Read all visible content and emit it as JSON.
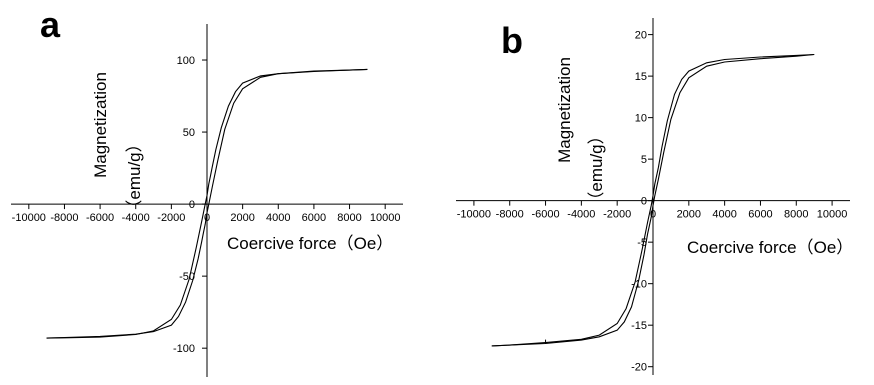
{
  "chart_data": [
    {
      "panel": "a",
      "type": "line",
      "xlabel": "Coercive force（Oe）",
      "ylabel": "Magnetization",
      "yunit": "（emu/g）",
      "xlim": [
        -11000,
        11000
      ],
      "ylim": [
        -120,
        125
      ],
      "xticks": [
        -10000,
        -8000,
        -6000,
        -4000,
        -2000,
        0,
        2000,
        4000,
        6000,
        8000,
        10000
      ],
      "yticks": [
        -100,
        -50,
        0,
        50,
        100
      ],
      "xtick_labels": [
        "-10000",
        "-8000",
        "-6000",
        "-4000",
        "-2000",
        "0",
        "2000",
        "4000",
        "6000",
        "8000",
        "10000"
      ],
      "ytick_labels": [
        "-100",
        "-50",
        "0",
        "50",
        "100"
      ],
      "grid": false,
      "series": [
        {
          "x": [
            -9000,
            -8000,
            -6000,
            -4000,
            -3000,
            -2000,
            -1500,
            -1000,
            -600,
            -300,
            -100,
            0,
            100,
            200,
            300,
            500,
            800,
            1200,
            1600,
            2000,
            3000,
            4000,
            6000,
            8000,
            9000
          ],
          "y": [
            -93,
            -92.8,
            -92.3,
            -90.5,
            -88,
            -80,
            -70,
            -52,
            -30,
            -12,
            0,
            6,
            14,
            20,
            26,
            38,
            53,
            68,
            78,
            84,
            89,
            90.5,
            92,
            93,
            93.5
          ]
        },
        {
          "x": [
            -9000,
            -8000,
            -6000,
            -4000,
            -3000,
            -2000,
            -1600,
            -1200,
            -800,
            -500,
            -300,
            -200,
            -100,
            0,
            100,
            300,
            600,
            1000,
            1500,
            2000,
            3000,
            4000,
            6000,
            8000,
            9000
          ],
          "y": [
            -93,
            -92.6,
            -91.8,
            -90.3,
            -88.5,
            -84,
            -78,
            -68,
            -53,
            -38,
            -26,
            -20,
            -14,
            -6,
            0,
            12,
            30,
            52,
            70,
            80,
            88,
            90.5,
            92.3,
            93,
            93.5
          ]
        }
      ]
    },
    {
      "panel": "b",
      "type": "line",
      "xlabel": "Coercive force（Oe）",
      "ylabel": "Magnetization",
      "yunit": "（emu/g）",
      "xlim": [
        -11000,
        11000
      ],
      "ylim": [
        -21,
        22
      ],
      "xticks": [
        -10000,
        -8000,
        -6000,
        -4000,
        -2000,
        0,
        2000,
        4000,
        6000,
        8000,
        10000
      ],
      "yticks": [
        -20,
        -15,
        -10,
        -5,
        0,
        5,
        10,
        15,
        20
      ],
      "xtick_labels": [
        "-10000",
        "-8000",
        "-6000",
        "-4000",
        "-2000",
        "0",
        "2000",
        "4000",
        "6000",
        "8000",
        "10000"
      ],
      "ytick_labels": [
        "-20",
        "-15",
        "-10",
        "-5",
        "0",
        "5",
        "10",
        "15",
        "20"
      ],
      "grid": false,
      "series": [
        {
          "x": [
            -9000,
            -8000,
            -6000,
            -4000,
            -3000,
            -2000,
            -1500,
            -1000,
            -600,
            -300,
            -100,
            0,
            100,
            200,
            300,
            500,
            800,
            1200,
            1600,
            2000,
            3000,
            4000,
            6000,
            8000,
            9000
          ],
          "y": [
            -17.5,
            -17.4,
            -17.1,
            -16.7,
            -16.2,
            -14.8,
            -13,
            -9.8,
            -5.8,
            -2.6,
            -0.6,
            0.6,
            2,
            3,
            4,
            6.5,
            9.6,
            12.8,
            14.6,
            15.6,
            16.6,
            17,
            17.3,
            17.5,
            17.6
          ]
        },
        {
          "x": [
            -9000,
            -8000,
            -6000,
            -4000,
            -3000,
            -2000,
            -1600,
            -1200,
            -800,
            -500,
            -300,
            -200,
            -100,
            0,
            100,
            300,
            600,
            1000,
            1500,
            2000,
            3000,
            4000,
            6000,
            8000,
            9000
          ],
          "y": [
            -17.5,
            -17.4,
            -17.2,
            -16.8,
            -16.4,
            -15.6,
            -14.6,
            -12.8,
            -9.6,
            -6.5,
            -4,
            -3,
            -2,
            -0.6,
            0.6,
            2.6,
            5.8,
            9.8,
            13,
            14.8,
            16.2,
            16.7,
            17.1,
            17.4,
            17.6
          ]
        }
      ],
      "markers": [
        {
          "x": -6000,
          "y": -17.1
        }
      ]
    }
  ]
}
